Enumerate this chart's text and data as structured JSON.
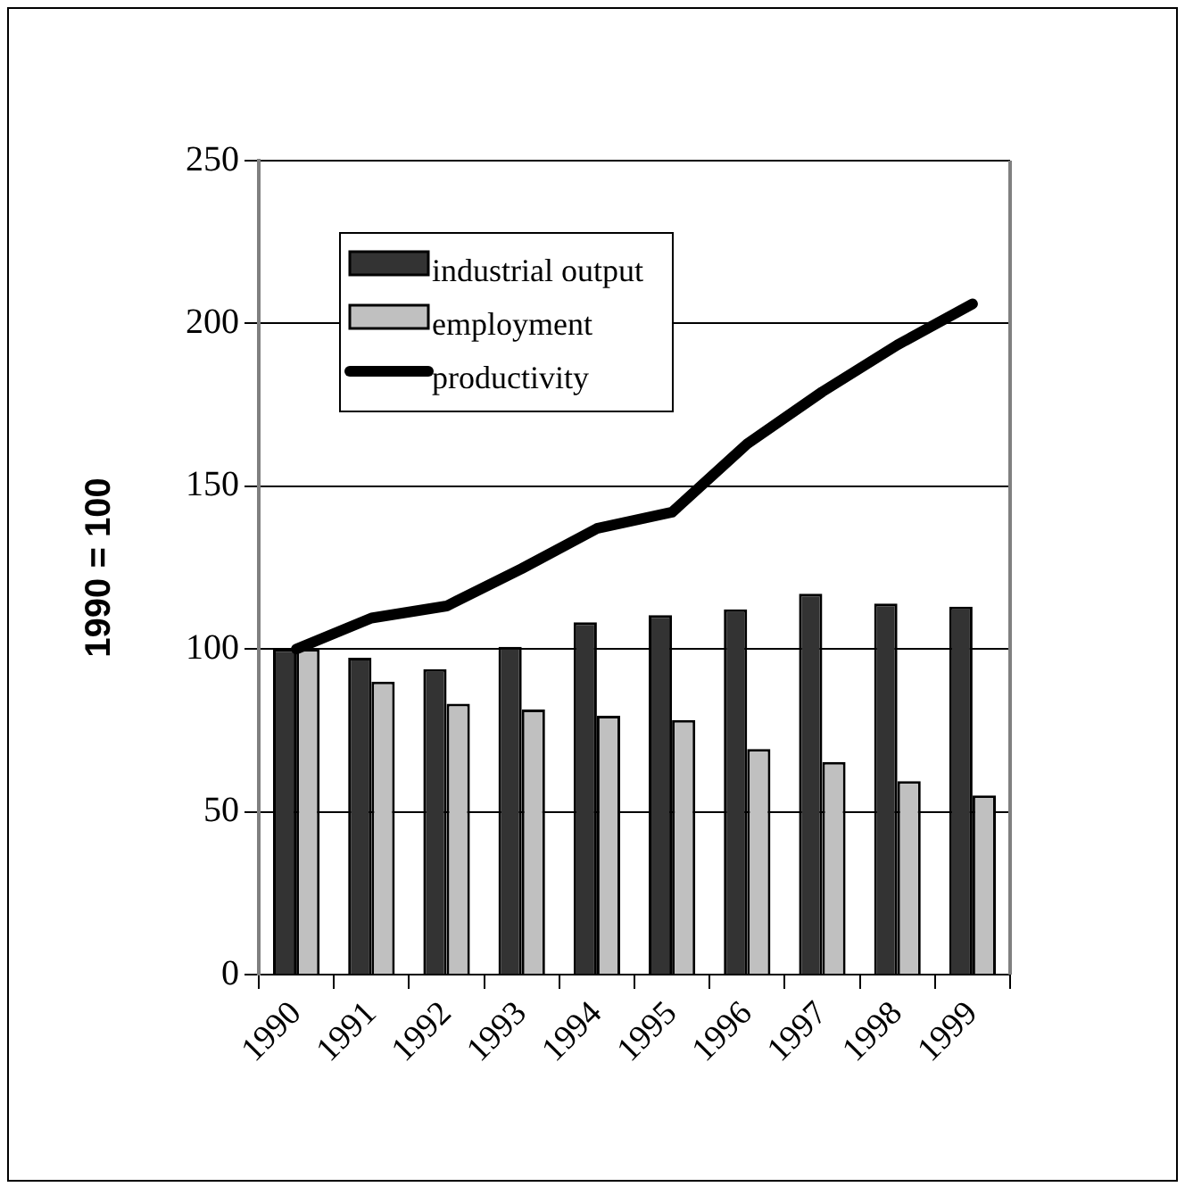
{
  "chart_data": {
    "type": "bar",
    "ylabel": "1990 = 100",
    "categories": [
      "1990",
      "1991",
      "1992",
      "1993",
      "1994",
      "1995",
      "1996",
      "1997",
      "1998",
      "1999"
    ],
    "series": [
      {
        "name": "industrial output",
        "color": "#333333",
        "values": [
          100,
          97.3,
          93.8,
          100.7,
          108.2,
          110.4,
          112.2,
          117,
          114,
          113
        ]
      },
      {
        "name": "employment",
        "color": "#c0c0c0",
        "values": [
          100,
          90,
          83.2,
          81.4,
          79.5,
          78.2,
          69.3,
          65.3,
          59.4,
          55
        ]
      },
      {
        "name": "productivity",
        "type": "line",
        "color": "#000000",
        "marker": "none",
        "values": [
          100,
          109.5,
          113.2,
          124.7,
          137,
          142,
          163,
          179,
          193.4,
          206
        ]
      }
    ],
    "ylim": [
      0,
      250
    ],
    "yticks": [
      0,
      50,
      100,
      150,
      200,
      250
    ],
    "grid": "y",
    "legend": "top left"
  }
}
